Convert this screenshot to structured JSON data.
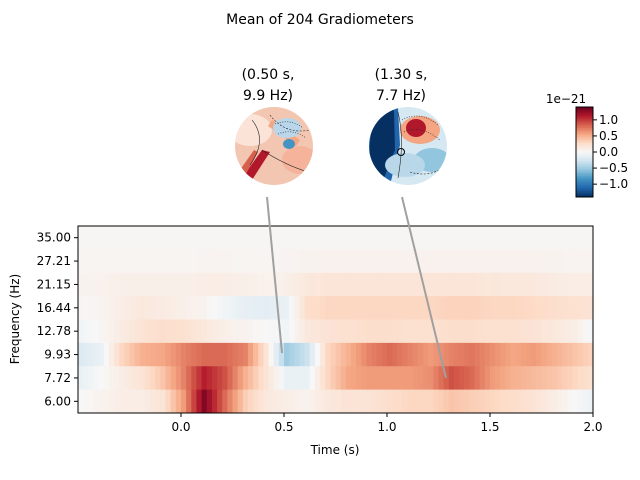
{
  "figure": {
    "title": "Mean of 204 Gradiometers",
    "colorbar_exponent": "1e−21"
  },
  "topomaps": [
    {
      "title_line1": "(0.50 s,",
      "title_line2": "9.9 Hz)",
      "time": 0.5,
      "freq": 9.93,
      "icon": "topomap-head-icon"
    },
    {
      "title_line1": "(1.30 s,",
      "title_line2": "7.7 Hz)",
      "time": 1.3,
      "freq": 7.72,
      "icon": "topomap-head-icon"
    }
  ],
  "colorbar": {
    "ticks": [
      "1.0",
      "0.5",
      "0.0",
      "−0.5",
      "−1.0"
    ],
    "tick_values": [
      1.0,
      0.5,
      0.0,
      -0.5,
      -1.0
    ],
    "vmin": -1.4,
    "vmax": 1.4,
    "colormap": "RdBu_r"
  },
  "chart_data": {
    "type": "heatmap",
    "title": "Mean of 204 Gradiometers",
    "xlabel": "Time (s)",
    "ylabel": "Frequency (Hz)",
    "xlim": [
      -0.5,
      2.0
    ],
    "xticks": [
      "0.0",
      "0.5",
      "1.0",
      "1.5",
      "2.0"
    ],
    "xtick_values": [
      0.0,
      0.5,
      1.0,
      1.5,
      2.0
    ],
    "frequencies": [
      "35.00",
      "27.21",
      "21.15",
      "16.44",
      "12.78",
      "9.93",
      "7.72",
      "6.00"
    ],
    "time_step": 0.1,
    "times": [
      -0.5,
      -0.4,
      -0.3,
      -0.2,
      -0.1,
      0.0,
      0.1,
      0.2,
      0.3,
      0.4,
      0.5,
      0.6,
      0.7,
      0.8,
      0.9,
      1.0,
      1.1,
      1.2,
      1.3,
      1.4,
      1.5,
      1.6,
      1.7,
      1.8,
      1.9,
      2.0
    ],
    "unit_scale": "1e-21",
    "values": [
      [
        0.02,
        0.02,
        0.02,
        0.02,
        0.02,
        0.02,
        0.02,
        0.02,
        0.02,
        0.02,
        0.02,
        0.02,
        0.02,
        0.02,
        0.02,
        0.02,
        0.02,
        0.02,
        0.02,
        0.02,
        0.02,
        0.02,
        0.02,
        0.02,
        0.02,
        0.02
      ],
      [
        0.03,
        0.03,
        0.03,
        0.03,
        0.03,
        0.03,
        0.04,
        0.04,
        0.03,
        0.03,
        0.04,
        0.05,
        0.06,
        0.06,
        0.06,
        0.06,
        0.06,
        0.06,
        0.06,
        0.06,
        0.06,
        0.06,
        0.06,
        0.05,
        0.04,
        0.04
      ],
      [
        0.05,
        0.06,
        0.08,
        0.08,
        0.08,
        0.08,
        0.1,
        0.1,
        0.08,
        0.06,
        0.08,
        0.15,
        0.18,
        0.18,
        0.18,
        0.18,
        0.18,
        0.18,
        0.18,
        0.18,
        0.16,
        0.15,
        0.15,
        0.12,
        0.1,
        0.1
      ],
      [
        0.02,
        0.04,
        0.1,
        0.15,
        0.12,
        0.08,
        0.05,
        -0.05,
        -0.12,
        -0.15,
        -0.1,
        0.25,
        0.3,
        0.3,
        0.3,
        0.3,
        0.3,
        0.3,
        0.32,
        0.32,
        0.3,
        0.3,
        0.28,
        0.25,
        0.22,
        0.2
      ],
      [
        -0.05,
        0.02,
        0.12,
        0.2,
        0.25,
        0.22,
        0.15,
        0.08,
        0.05,
        0.0,
        -0.05,
        0.15,
        0.2,
        0.22,
        0.25,
        0.25,
        0.22,
        0.22,
        0.25,
        0.25,
        0.22,
        0.22,
        0.2,
        0.15,
        0.1,
        -0.05
      ],
      [
        -0.2,
        -0.1,
        0.3,
        0.5,
        0.55,
        0.7,
        0.8,
        0.8,
        0.7,
        0.2,
        -0.5,
        -0.3,
        0.3,
        0.5,
        0.7,
        0.8,
        0.7,
        0.6,
        0.7,
        0.75,
        0.65,
        0.55,
        0.6,
        0.5,
        0.4,
        0.3
      ],
      [
        -0.1,
        0.0,
        0.1,
        0.2,
        0.4,
        0.7,
        1.1,
        0.9,
        0.5,
        0.2,
        -0.1,
        -0.1,
        0.3,
        0.55,
        0.6,
        0.6,
        0.6,
        0.65,
        0.9,
        0.8,
        0.6,
        0.5,
        0.45,
        0.4,
        0.3,
        0.2
      ],
      [
        0.0,
        0.05,
        0.1,
        0.1,
        0.2,
        0.6,
        1.3,
        0.8,
        0.35,
        0.15,
        0.1,
        0.05,
        0.15,
        0.2,
        0.2,
        0.25,
        0.3,
        0.3,
        0.4,
        0.35,
        0.3,
        0.25,
        0.2,
        0.1,
        0.0,
        -0.1
      ]
    ]
  }
}
